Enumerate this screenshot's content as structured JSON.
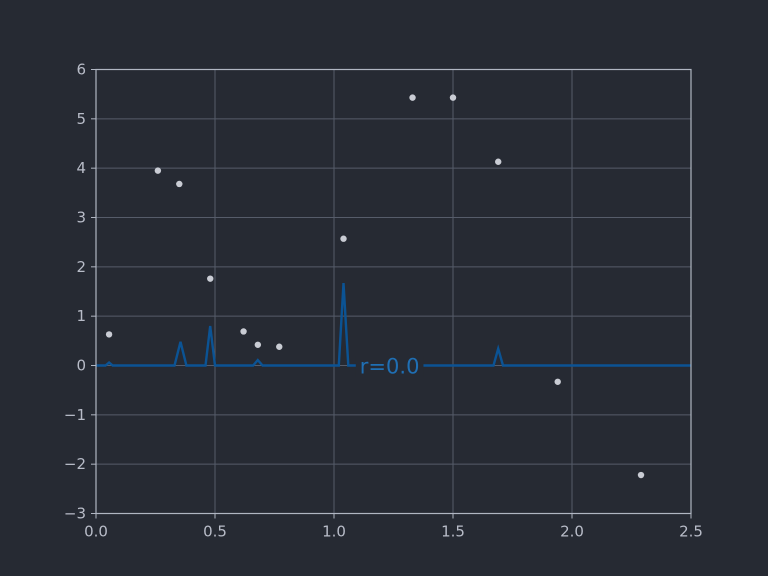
{
  "chart_data": {
    "type": "scatter",
    "title": "",
    "xlabel": "",
    "ylabel": "",
    "xlim": [
      0.0,
      2.5
    ],
    "ylim": [
      -3,
      6
    ],
    "grid": true,
    "x_ticks": [
      0.0,
      0.5,
      1.0,
      1.5,
      2.0,
      2.5
    ],
    "x_tick_labels": [
      "0.0",
      "0.5",
      "1.0",
      "1.5",
      "2.0",
      "2.5"
    ],
    "y_ticks": [
      -3,
      -2,
      -1,
      0,
      1,
      2,
      3,
      4,
      5,
      6
    ],
    "y_tick_labels": [
      "−3",
      "−2",
      "−1",
      "0",
      "1",
      "2",
      "3",
      "4",
      "5",
      "6"
    ],
    "series": [
      {
        "kind": "scatter",
        "color": "#c9ccd4",
        "points": [
          {
            "x": 0.055,
            "y": 0.63
          },
          {
            "x": 0.26,
            "y": 3.95
          },
          {
            "x": 0.35,
            "y": 3.68
          },
          {
            "x": 0.48,
            "y": 1.76
          },
          {
            "x": 0.62,
            "y": 0.69
          },
          {
            "x": 0.68,
            "y": 0.42
          },
          {
            "x": 0.77,
            "y": 0.38
          },
          {
            "x": 1.04,
            "y": 2.57
          },
          {
            "x": 1.33,
            "y": 5.43
          },
          {
            "x": 1.5,
            "y": 5.43
          },
          {
            "x": 1.69,
            "y": 4.13
          },
          {
            "x": 1.94,
            "y": -0.33
          },
          {
            "x": 2.29,
            "y": -2.22
          }
        ]
      },
      {
        "kind": "line",
        "color": "#0b5394",
        "points": [
          {
            "x": 0.0,
            "y": 0
          },
          {
            "x": 0.04,
            "y": 0
          },
          {
            "x": 0.055,
            "y": 0.06
          },
          {
            "x": 0.07,
            "y": 0
          },
          {
            "x": 0.33,
            "y": 0
          },
          {
            "x": 0.355,
            "y": 0.48
          },
          {
            "x": 0.38,
            "y": 0
          },
          {
            "x": 0.46,
            "y": 0
          },
          {
            "x": 0.48,
            "y": 0.8
          },
          {
            "x": 0.5,
            "y": 0
          },
          {
            "x": 0.66,
            "y": 0
          },
          {
            "x": 0.68,
            "y": 0.11
          },
          {
            "x": 0.7,
            "y": 0
          },
          {
            "x": 1.02,
            "y": 0
          },
          {
            "x": 1.04,
            "y": 1.67
          },
          {
            "x": 1.06,
            "y": 0
          },
          {
            "x": 1.67,
            "y": 0
          },
          {
            "x": 1.69,
            "y": 0.34
          },
          {
            "x": 1.71,
            "y": 0
          },
          {
            "x": 2.5,
            "y": 0
          }
        ]
      }
    ],
    "annotation": {
      "text": "r=0.0",
      "x": 1.1,
      "y": 0.0
    }
  }
}
